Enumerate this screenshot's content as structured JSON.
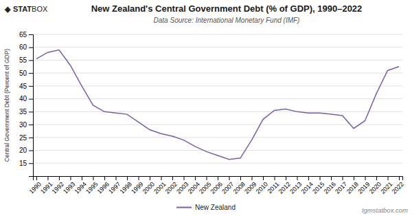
{
  "chart_data": {
    "type": "line",
    "title": "New Zealand's Central Government Debt (% of GDP), 1990–2022",
    "subtitle": "Data Source: International Monetary Fund (IMF)",
    "ylabel": "Central Government Debt (Percent of GDP)",
    "annotations": [
      "◈",
      "STAT",
      "BOX",
      "tgmstatbox.com"
    ],
    "x": [
      1990,
      1991,
      1992,
      1993,
      1994,
      1995,
      1996,
      1997,
      1998,
      1999,
      2000,
      2001,
      2002,
      2003,
      2004,
      2005,
      2006,
      2007,
      2008,
      2009,
      2010,
      2011,
      2012,
      2013,
      2014,
      2015,
      2016,
      2017,
      2018,
      2019,
      2020,
      2021,
      2022
    ],
    "series": [
      {
        "name": "New Zealand",
        "color": "#7B5EA7",
        "values": [
          55.5,
          58.0,
          59.0,
          53.0,
          45.0,
          37.5,
          35.0,
          34.5,
          34.0,
          31.0,
          28.0,
          26.5,
          25.5,
          24.0,
          21.5,
          19.5,
          18.0,
          16.5,
          17.0,
          24.0,
          32.0,
          35.5,
          36.0,
          35.0,
          34.5,
          34.5,
          34.0,
          33.5,
          28.5,
          31.5,
          42.0,
          51.0,
          52.5
        ]
      }
    ],
    "xlim": [
      1989.7,
      2022.3
    ],
    "xticks": [
      1990,
      1991,
      1992,
      1993,
      1994,
      1995,
      1996,
      1997,
      1998,
      1999,
      2000,
      2001,
      2002,
      2003,
      2004,
      2005,
      2006,
      2007,
      2008,
      2009,
      2010,
      2011,
      2012,
      2013,
      2014,
      2015,
      2016,
      2017,
      2018,
      2019,
      2020,
      2021,
      2022
    ],
    "ylim": [
      10,
      65
    ],
    "yticks": [
      15,
      20,
      25,
      30,
      35,
      40,
      45,
      50,
      55,
      60,
      65
    ],
    "grid": true,
    "legend": "bottom"
  }
}
